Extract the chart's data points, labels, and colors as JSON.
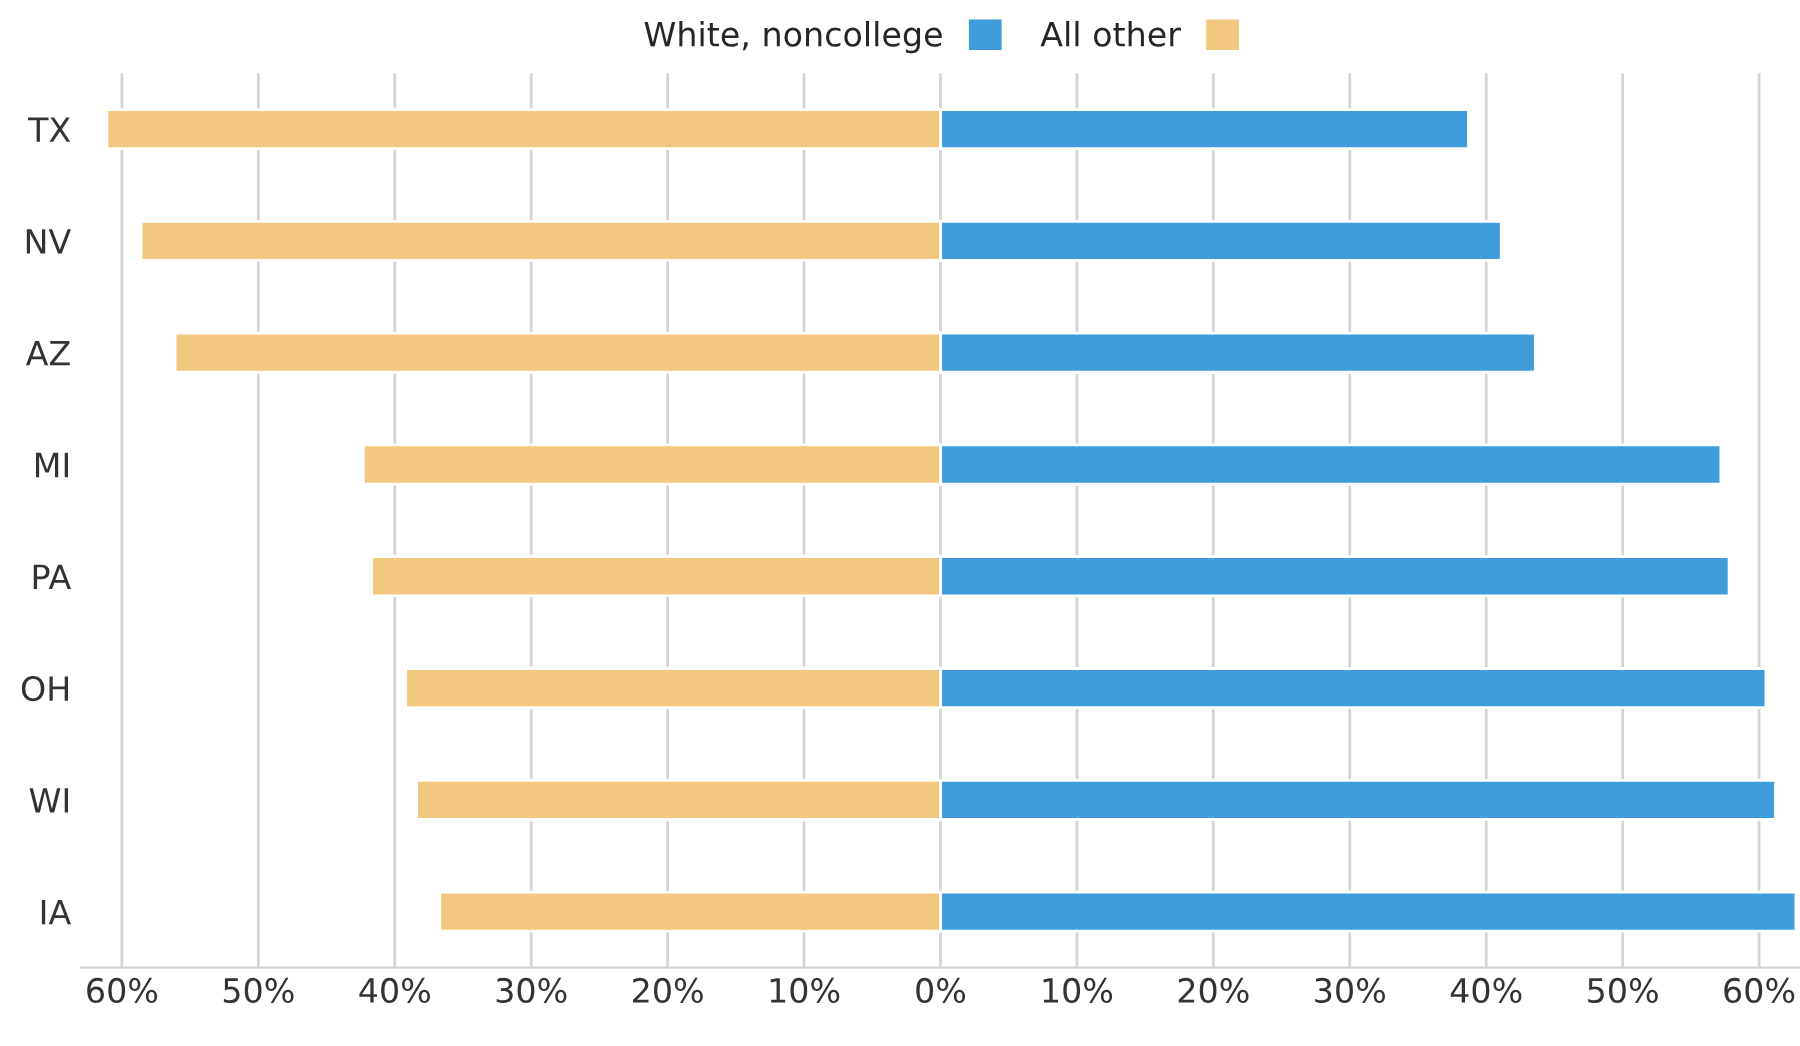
{
  "chart_data": {
    "type": "bar",
    "orientation": "horizontal",
    "stacked": true,
    "categories": [
      "TX",
      "NV",
      "AZ",
      "MI",
      "PA",
      "OH",
      "WI",
      "IA"
    ],
    "series": [
      {
        "name": "White, noncollege",
        "color": "#3f9ddc",
        "values": [
          38.7,
          41.1,
          43.6,
          57.2,
          57.8,
          60.5,
          61.2,
          62.7
        ]
      },
      {
        "name": "All other",
        "color": "#f2c880",
        "values": [
          -61.1,
          -58.6,
          -56.1,
          -42.3,
          -41.7,
          -39.2,
          -38.4,
          -36.7
        ]
      }
    ],
    "xlim": [
      -63,
      63
    ],
    "xticks": [
      {
        "value": -60,
        "label": "60%"
      },
      {
        "value": -50,
        "label": "50%"
      },
      {
        "value": -40,
        "label": "40%"
      },
      {
        "value": -30,
        "label": "30%"
      },
      {
        "value": -20,
        "label": "20%"
      },
      {
        "value": -10,
        "label": "10%"
      },
      {
        "value": 0,
        "label": "0%"
      },
      {
        "value": 10,
        "label": "10%"
      },
      {
        "value": 20,
        "label": "20%"
      },
      {
        "value": 30,
        "label": "30%"
      },
      {
        "value": 40,
        "label": "40%"
      },
      {
        "value": 50,
        "label": "50%"
      },
      {
        "value": 60,
        "label": "60%"
      }
    ],
    "grid": "x",
    "legend": "top"
  }
}
